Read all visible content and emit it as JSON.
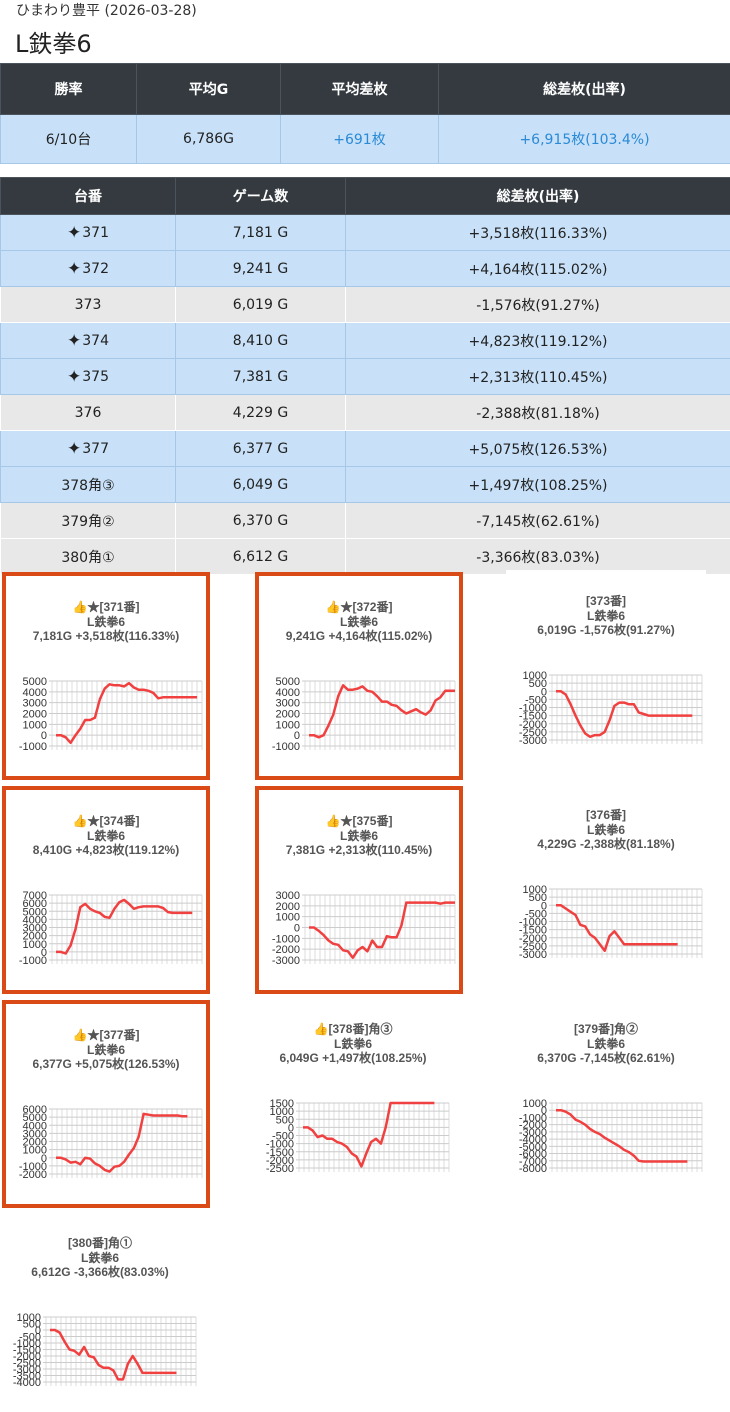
{
  "header": {
    "subtitle": "ひまわり豊平 (2026-03-28)",
    "title": "L鉄拳6"
  },
  "summary": {
    "headers": [
      "勝率",
      "平均G",
      "平均差枚",
      "総差枚(出率)"
    ],
    "values": [
      "6/10台",
      "6,786G",
      "+691枚",
      "+6,915枚(103.4%)"
    ]
  },
  "machines": {
    "headers": [
      "台番",
      "ゲーム数",
      "総差枚(出率)"
    ],
    "rows": [
      {
        "num": "371",
        "sparkle": true,
        "games": "7,181 G",
        "diff": "+3,518枚(116.33%)",
        "win": true
      },
      {
        "num": "372",
        "sparkle": true,
        "games": "9,241 G",
        "diff": "+4,164枚(115.02%)",
        "win": true
      },
      {
        "num": "373",
        "sparkle": false,
        "games": "6,019 G",
        "diff": "-1,576枚(91.27%)",
        "win": false
      },
      {
        "num": "374",
        "sparkle": true,
        "games": "8,410 G",
        "diff": "+4,823枚(119.12%)",
        "win": true
      },
      {
        "num": "375",
        "sparkle": true,
        "games": "7,381 G",
        "diff": "+2,313枚(110.45%)",
        "win": true
      },
      {
        "num": "376",
        "sparkle": false,
        "games": "4,229 G",
        "diff": "-2,388枚(81.18%)",
        "win": false
      },
      {
        "num": "377",
        "sparkle": true,
        "games": "6,377 G",
        "diff": "+5,075枚(126.53%)",
        "win": true
      },
      {
        "num": "378角③",
        "sparkle": false,
        "games": "6,049 G",
        "diff": "+1,497枚(108.25%)",
        "win": true
      },
      {
        "num": "379角②",
        "sparkle": false,
        "games": "6,370 G",
        "diff": "-7,145枚(62.61%)",
        "win": false
      },
      {
        "num": "380角①",
        "sparkle": false,
        "games": "6,612 G",
        "diff": "-3,366枚(83.03%)",
        "win": false
      }
    ]
  },
  "colors": {
    "accent": "#2b8ad6",
    "highlight_border": "#d94a16",
    "line": "#f04040",
    "win_row": "#c8e1f8",
    "lose_row": "#e8e8e8",
    "header_bg": "#343a40"
  },
  "chart_data": [
    {
      "type": "line",
      "title": [
        "👍★[371番]",
        "L鉄拳6",
        "7,181G +3,518枚(116.33%)"
      ],
      "highlighted": true,
      "ylim": [
        -1000,
        5000
      ],
      "yticks": [
        "5000",
        "4000",
        "3000",
        "2000",
        "1000",
        "0",
        "-1000"
      ],
      "values": [
        0,
        0,
        -200,
        -700,
        0,
        600,
        1400,
        1400,
        1600,
        3300,
        4300,
        4700,
        4600,
        4600,
        4500,
        4800,
        4400,
        4200,
        4200,
        4100,
        3900,
        3400,
        3500,
        3500,
        3500,
        3500,
        3500,
        3500,
        3500,
        3500
      ]
    },
    {
      "type": "line",
      "title": [
        "👍★[372番]",
        "L鉄拳6",
        "9,241G +4,164枚(115.02%)"
      ],
      "highlighted": true,
      "ylim": [
        -1000,
        5000
      ],
      "yticks": [
        "5000",
        "4000",
        "3000",
        "2000",
        "1000",
        "0",
        "-1000"
      ],
      "values": [
        0,
        0,
        -200,
        0,
        900,
        1900,
        3600,
        4600,
        4200,
        4200,
        4300,
        4500,
        4100,
        4000,
        3600,
        3100,
        3100,
        2800,
        2700,
        2300,
        2000,
        2200,
        2400,
        2100,
        1900,
        2300,
        3200,
        3500,
        4100,
        4100,
        4100
      ]
    },
    {
      "type": "line",
      "title": [
        "[373番]",
        "L鉄拳6",
        "6,019G -1,576枚(91.27%)"
      ],
      "highlighted": false,
      "ylim": [
        -3000,
        1000
      ],
      "yticks": [
        "1000",
        "500",
        "0",
        "-500",
        "-1000",
        "-1500",
        "-2000",
        "-2500",
        "-3000"
      ],
      "values": [
        0,
        0,
        -200,
        -800,
        -1500,
        -2100,
        -2600,
        -2800,
        -2700,
        -2700,
        -2500,
        -1800,
        -900,
        -700,
        -700,
        -800,
        -800,
        -1300,
        -1400,
        -1500,
        -1500,
        -1500,
        -1500,
        -1500,
        -1500,
        -1500,
        -1500,
        -1500,
        -1500
      ]
    },
    {
      "type": "line",
      "title": [
        "👍★[374番]",
        "L鉄拳6",
        "8,410G +4,823枚(119.12%)"
      ],
      "highlighted": true,
      "ylim": [
        -1000,
        7000
      ],
      "yticks": [
        "7000",
        "6000",
        "5000",
        "4000",
        "3000",
        "2000",
        "1000",
        "0",
        "-1000"
      ],
      "values": [
        0,
        0,
        -200,
        800,
        2800,
        5500,
        5900,
        5300,
        5000,
        4800,
        4300,
        4200,
        5300,
        6100,
        6400,
        5900,
        5300,
        5500,
        5600,
        5600,
        5600,
        5600,
        5400,
        4900,
        4800,
        4800,
        4800,
        4800,
        4800
      ]
    },
    {
      "type": "line",
      "title": [
        "👍★[375番]",
        "L鉄拳6",
        "7,381G +2,313枚(110.45%)"
      ],
      "highlighted": true,
      "ylim": [
        -3000,
        3000
      ],
      "yticks": [
        "3000",
        "2000",
        "1000",
        "0",
        "-1000",
        "-2000",
        "-3000"
      ],
      "values": [
        0,
        0,
        -300,
        -700,
        -1200,
        -1500,
        -1600,
        -2100,
        -2200,
        -2800,
        -2100,
        -1800,
        -2200,
        -1200,
        -1800,
        -1800,
        -800,
        -900,
        -900,
        200,
        2300,
        2300,
        2300,
        2300,
        2300,
        2300,
        2300,
        2200,
        2300,
        2300,
        2300
      ]
    },
    {
      "type": "line",
      "title": [
        "[376番]",
        "L鉄拳6",
        "4,229G -2,388枚(81.18%)"
      ],
      "highlighted": false,
      "ylim": [
        -3000,
        1000
      ],
      "yticks": [
        "1000",
        "500",
        "0",
        "-500",
        "-1000",
        "-1500",
        "-2000",
        "-2500",
        "-3000"
      ],
      "values": [
        0,
        0,
        -200,
        -400,
        -600,
        -1200,
        -1300,
        -1800,
        -2000,
        -2400,
        -2800,
        -1900,
        -1600,
        -2000,
        -2400,
        -2400,
        -2400,
        -2400,
        -2400,
        -2400,
        -2400,
        -2400,
        -2400,
        -2400,
        -2400,
        -2400
      ]
    },
    {
      "type": "line",
      "title": [
        "👍★[377番]",
        "L鉄拳6",
        "6,377G +5,075枚(126.53%)"
      ],
      "highlighted": true,
      "ylim": [
        -2000,
        6000
      ],
      "yticks": [
        "6000",
        "5000",
        "4000",
        "3000",
        "2000",
        "1000",
        "0",
        "-1000",
        "-2000"
      ],
      "values": [
        0,
        0,
        -200,
        -600,
        -500,
        -800,
        0,
        -100,
        -700,
        -1000,
        -1500,
        -1700,
        -1100,
        -1000,
        -500,
        400,
        1200,
        2600,
        5400,
        5300,
        5200,
        5200,
        5200,
        5200,
        5200,
        5200,
        5100,
        5100
      ]
    },
    {
      "type": "line",
      "title": [
        "👍[378番]角③",
        "L鉄拳6",
        "6,049G +1,497枚(108.25%)"
      ],
      "highlighted": false,
      "ylim": [
        -2500,
        1500
      ],
      "yticks": [
        "1500",
        "1000",
        "500",
        "0",
        "-500",
        "-1000",
        "-1500",
        "-2000",
        "-2500"
      ],
      "values": [
        0,
        0,
        -200,
        -600,
        -500,
        -700,
        -700,
        -900,
        -1000,
        -1200,
        -1600,
        -1800,
        -2400,
        -1600,
        -900,
        -700,
        -1000,
        0,
        1500,
        1500,
        1500,
        1500,
        1500,
        1500,
        1500,
        1500,
        1500,
        1500
      ]
    },
    {
      "type": "line",
      "title": [
        "[379番]角②",
        "L鉄拳6",
        "6,370G -7,145枚(62.61%)"
      ],
      "highlighted": false,
      "ylim": [
        -8000,
        1000
      ],
      "yticks": [
        "1000",
        "0",
        "-1000",
        "-2000",
        "-3000",
        "-4000",
        "-5000",
        "-6000",
        "-7000",
        "-8000"
      ],
      "values": [
        0,
        0,
        -200,
        -600,
        -1300,
        -1600,
        -2000,
        -2600,
        -3000,
        -3300,
        -3800,
        -4200,
        -4600,
        -5000,
        -5500,
        -5800,
        -6300,
        -7000,
        -7100,
        -7100,
        -7100,
        -7100,
        -7100,
        -7100,
        -7100,
        -7100,
        -7100,
        -7100
      ]
    },
    {
      "type": "line",
      "title": [
        "[380番]角①",
        "L鉄拳6",
        "6,612G -3,366枚(83.03%)"
      ],
      "highlighted": false,
      "ylim": [
        -4000,
        1000
      ],
      "yticks": [
        "1000",
        "500",
        "0",
        "-500",
        "-1000",
        "-1500",
        "-2000",
        "-2500",
        "-3000",
        "-3500",
        "-4000"
      ],
      "values": [
        0,
        0,
        -200,
        -900,
        -1500,
        -1600,
        -1900,
        -1300,
        -2000,
        -2100,
        -2700,
        -2900,
        -2900,
        -3100,
        -3800,
        -3800,
        -2600,
        -2000,
        -2600,
        -3300,
        -3300,
        -3300,
        -3300,
        -3300,
        -3300,
        -3300,
        -3300
      ]
    }
  ]
}
